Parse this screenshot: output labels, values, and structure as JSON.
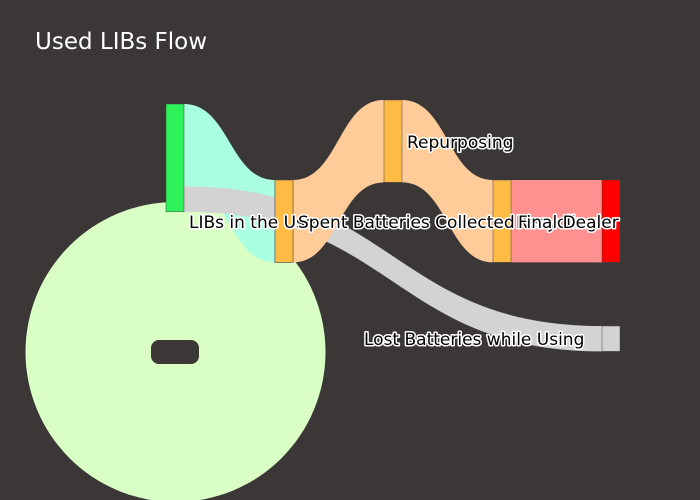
{
  "chart_data": {
    "type": "sankey",
    "title": "Used LIBs Flow",
    "nodes": [
      {
        "id": "source",
        "label": "",
        "color": "#2ef25a"
      },
      {
        "id": "in_use",
        "label": "LIBs in the Use",
        "color": "#ffbb44"
      },
      {
        "id": "collected",
        "label": "Spent Batteries Collected",
        "color": "#ffbb44"
      },
      {
        "id": "repurposing",
        "label": "Repurposing",
        "color": "#ffbb44"
      },
      {
        "id": "recycling",
        "label": "Recycling",
        "color": "#ffbb44"
      },
      {
        "id": "final",
        "label": "Final Dealer",
        "color": "#ff0000"
      },
      {
        "id": "lost",
        "label": "Lost Batteries while Using",
        "color": "#d3d3d3"
      }
    ],
    "links": [
      {
        "source": "source",
        "target": "source",
        "value": 3,
        "color": "#d9ffc4"
      },
      {
        "source": "source",
        "target": "in_use",
        "value": 1.07,
        "color": "#aaffe0"
      },
      {
        "source": "source",
        "target": "lost",
        "value": 0.33,
        "color": "#d3d3d3"
      },
      {
        "source": "in_use",
        "target": "collected",
        "value": 1.07,
        "color": "#ffcc99"
      },
      {
        "source": "collected",
        "target": "repurposing",
        "value": 1.07,
        "color": "#ffcc99"
      },
      {
        "source": "repurposing",
        "target": "recycling",
        "value": 1.07,
        "color": "#ffcc99"
      },
      {
        "source": "recycling",
        "target": "final",
        "value": 1.07,
        "color": "#ff9090"
      }
    ]
  }
}
